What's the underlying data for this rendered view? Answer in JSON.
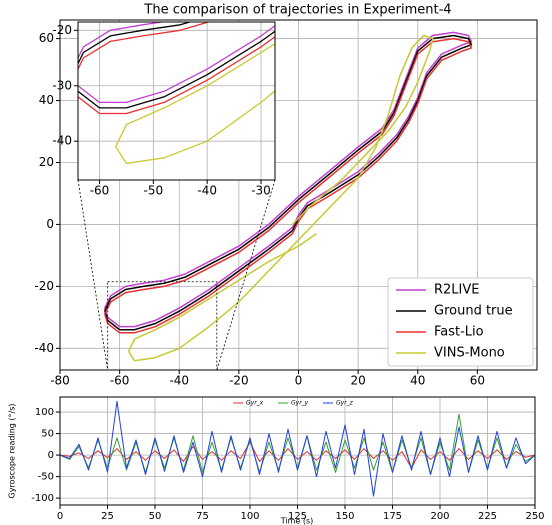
{
  "chart_data": [
    {
      "type": "line",
      "title": "The comparison of trajectories in Experiment-4",
      "xlim": [
        -80,
        80
      ],
      "ylim": [
        -47,
        66
      ],
      "xticks": [
        -80,
        -60,
        -40,
        -20,
        0,
        20,
        40,
        60
      ],
      "yticks": [
        -40,
        -20,
        0,
        20,
        40,
        60
      ],
      "grid": true,
      "legend": "lower right",
      "series": [
        {
          "name": "R2LIVE",
          "color": "#c040d0",
          "x": [
            -65,
            -63,
            -58,
            -52,
            -45,
            -38,
            -30,
            -20,
            -10,
            0,
            10,
            20,
            28,
            32,
            36,
            40,
            45,
            52,
            57,
            58,
            55,
            48,
            43,
            40,
            37,
            33,
            27,
            20,
            10,
            3,
            0,
            -2,
            -10,
            -20,
            -30,
            -40,
            -48,
            -55,
            -60,
            -64,
            -65
          ],
          "y": [
            -27,
            -23,
            -20,
            -19,
            -18,
            -16,
            -12,
            -7,
            0,
            9,
            17,
            25,
            31,
            37,
            47,
            57,
            61,
            62,
            61,
            59,
            58,
            55,
            49,
            41,
            35,
            29,
            23,
            17,
            11,
            7,
            3,
            -1,
            -7,
            -14,
            -21,
            -27,
            -31,
            -33,
            -33,
            -30,
            -27
          ]
        },
        {
          "name": "Ground true",
          "color": "#000000",
          "x": [
            -65,
            -63,
            -58,
            -52,
            -45,
            -38,
            -30,
            -20,
            -10,
            0,
            10,
            20,
            28,
            32,
            36,
            40,
            45,
            52,
            57,
            58,
            55,
            48,
            43,
            40,
            37,
            33,
            27,
            20,
            10,
            3,
            0,
            -2,
            -10,
            -20,
            -30,
            -40,
            -48,
            -55,
            -60,
            -64,
            -65
          ],
          "y": [
            -28,
            -24,
            -21,
            -20,
            -19,
            -17,
            -13,
            -8,
            -1,
            8,
            16,
            24,
            30,
            36,
            46,
            56,
            60,
            61,
            60,
            58,
            57,
            54,
            48,
            40,
            34,
            28,
            22,
            16,
            10,
            6,
            2,
            -2,
            -8,
            -15,
            -22,
            -28,
            -32,
            -34,
            -34,
            -31,
            -28
          ]
        },
        {
          "name": "Fast-Lio",
          "color": "#e83030",
          "x": [
            -65,
            -63,
            -58,
            -52,
            -45,
            -38,
            -30,
            -20,
            -10,
            0,
            10,
            20,
            28,
            32,
            36,
            40,
            45,
            52,
            57,
            58,
            55,
            48,
            43,
            40,
            37,
            33,
            27,
            20,
            10,
            3,
            0,
            -2,
            -10,
            -20,
            -30,
            -40,
            -48,
            -55,
            -60,
            -64,
            -65
          ],
          "y": [
            -29,
            -25,
            -22,
            -21,
            -20,
            -18,
            -14,
            -9,
            -2,
            7,
            15,
            23,
            29,
            35,
            45,
            55,
            59,
            60,
            59,
            57,
            56,
            53,
            47,
            39,
            33,
            27,
            21,
            15,
            9,
            5,
            1,
            -3,
            -9,
            -16,
            -23,
            -29,
            -33,
            -35,
            -35,
            -32,
            -29
          ]
        },
        {
          "name": "VINS-Mono",
          "color": "#c8c832",
          "x": [
            6,
            0,
            -10,
            -20,
            -30,
            -40,
            -48,
            -55,
            -57,
            -55,
            -48,
            -40,
            -30,
            -20,
            -10,
            0,
            10,
            20,
            26,
            30,
            34,
            38,
            42,
            45,
            44,
            40,
            36,
            30,
            22,
            14,
            4,
            -2
          ],
          "y": [
            -3,
            -7,
            -12,
            -18,
            -24,
            -30,
            -34,
            -37,
            -41,
            -44,
            -43,
            -40,
            -33,
            -25,
            -15,
            -5,
            5,
            15,
            25,
            35,
            48,
            57,
            61,
            60,
            56,
            46,
            38,
            30,
            22,
            14,
            6,
            0
          ]
        }
      ],
      "inset": {
        "xlim": [
          -64,
          -27.4
        ],
        "ylim": [
          -47,
          -18.5
        ],
        "xticks": [
          -60,
          -50,
          -40,
          -30
        ],
        "yticks": [
          -20,
          -30,
          -40
        ]
      }
    },
    {
      "type": "line",
      "ylabel": "Gyroscope reading (°/s)",
      "xlabel": "Time (s)",
      "xlim": [
        0,
        250
      ],
      "ylim": [
        -116,
        135
      ],
      "xticks": [
        0,
        25,
        50,
        75,
        100,
        125,
        150,
        175,
        200,
        225,
        250
      ],
      "yticks": [
        -100,
        -50,
        0,
        50,
        100
      ],
      "grid": true,
      "legend": "upper center",
      "x": [
        0,
        5,
        10,
        15,
        20,
        25,
        30,
        35,
        40,
        45,
        50,
        55,
        60,
        65,
        70,
        75,
        80,
        85,
        90,
        95,
        100,
        105,
        110,
        115,
        120,
        125,
        130,
        135,
        140,
        145,
        150,
        155,
        160,
        165,
        170,
        175,
        180,
        185,
        190,
        195,
        200,
        205,
        210,
        215,
        220,
        225,
        230,
        235,
        240,
        245,
        250
      ],
      "series": [
        {
          "name": "Gyr_x",
          "color": "#e03030",
          "values": [
            0,
            -3,
            5,
            -8,
            10,
            -6,
            15,
            -10,
            8,
            -12,
            10,
            -8,
            12,
            -15,
            20,
            -10,
            8,
            -12,
            10,
            -8,
            30,
            -15,
            10,
            -12,
            15,
            -10,
            8,
            -12,
            10,
            -8,
            12,
            -10,
            15,
            -8,
            10,
            -12,
            8,
            -30,
            12,
            -10,
            8,
            -12,
            15,
            -10,
            10,
            -8,
            12,
            -10,
            8,
            -5,
            0
          ]
        },
        {
          "name": "Gyr_y",
          "color": "#30a030",
          "values": [
            0,
            -10,
            20,
            -30,
            35,
            -30,
            40,
            -35,
            30,
            -40,
            35,
            -30,
            40,
            -35,
            45,
            -40,
            30,
            -35,
            40,
            -30,
            35,
            -40,
            30,
            -35,
            40,
            -30,
            45,
            -35,
            30,
            -40,
            35,
            -30,
            40,
            -35,
            30,
            -40,
            35,
            -30,
            40,
            -45,
            30,
            -35,
            95,
            -40,
            35,
            -30,
            40,
            -30,
            25,
            -15,
            0
          ]
        },
        {
          "name": "Gyr_z",
          "color": "#2040e0",
          "values": [
            0,
            -8,
            25,
            -35,
            40,
            -40,
            125,
            -30,
            35,
            -45,
            40,
            -38,
            45,
            -40,
            30,
            -50,
            55,
            -40,
            45,
            -35,
            40,
            -45,
            50,
            -40,
            60,
            -35,
            45,
            -50,
            55,
            -30,
            70,
            -45,
            60,
            -95,
            50,
            -40,
            45,
            -35,
            55,
            -45,
            40,
            -50,
            65,
            -40,
            45,
            -35,
            55,
            -30,
            40,
            -20,
            0
          ]
        }
      ]
    }
  ]
}
